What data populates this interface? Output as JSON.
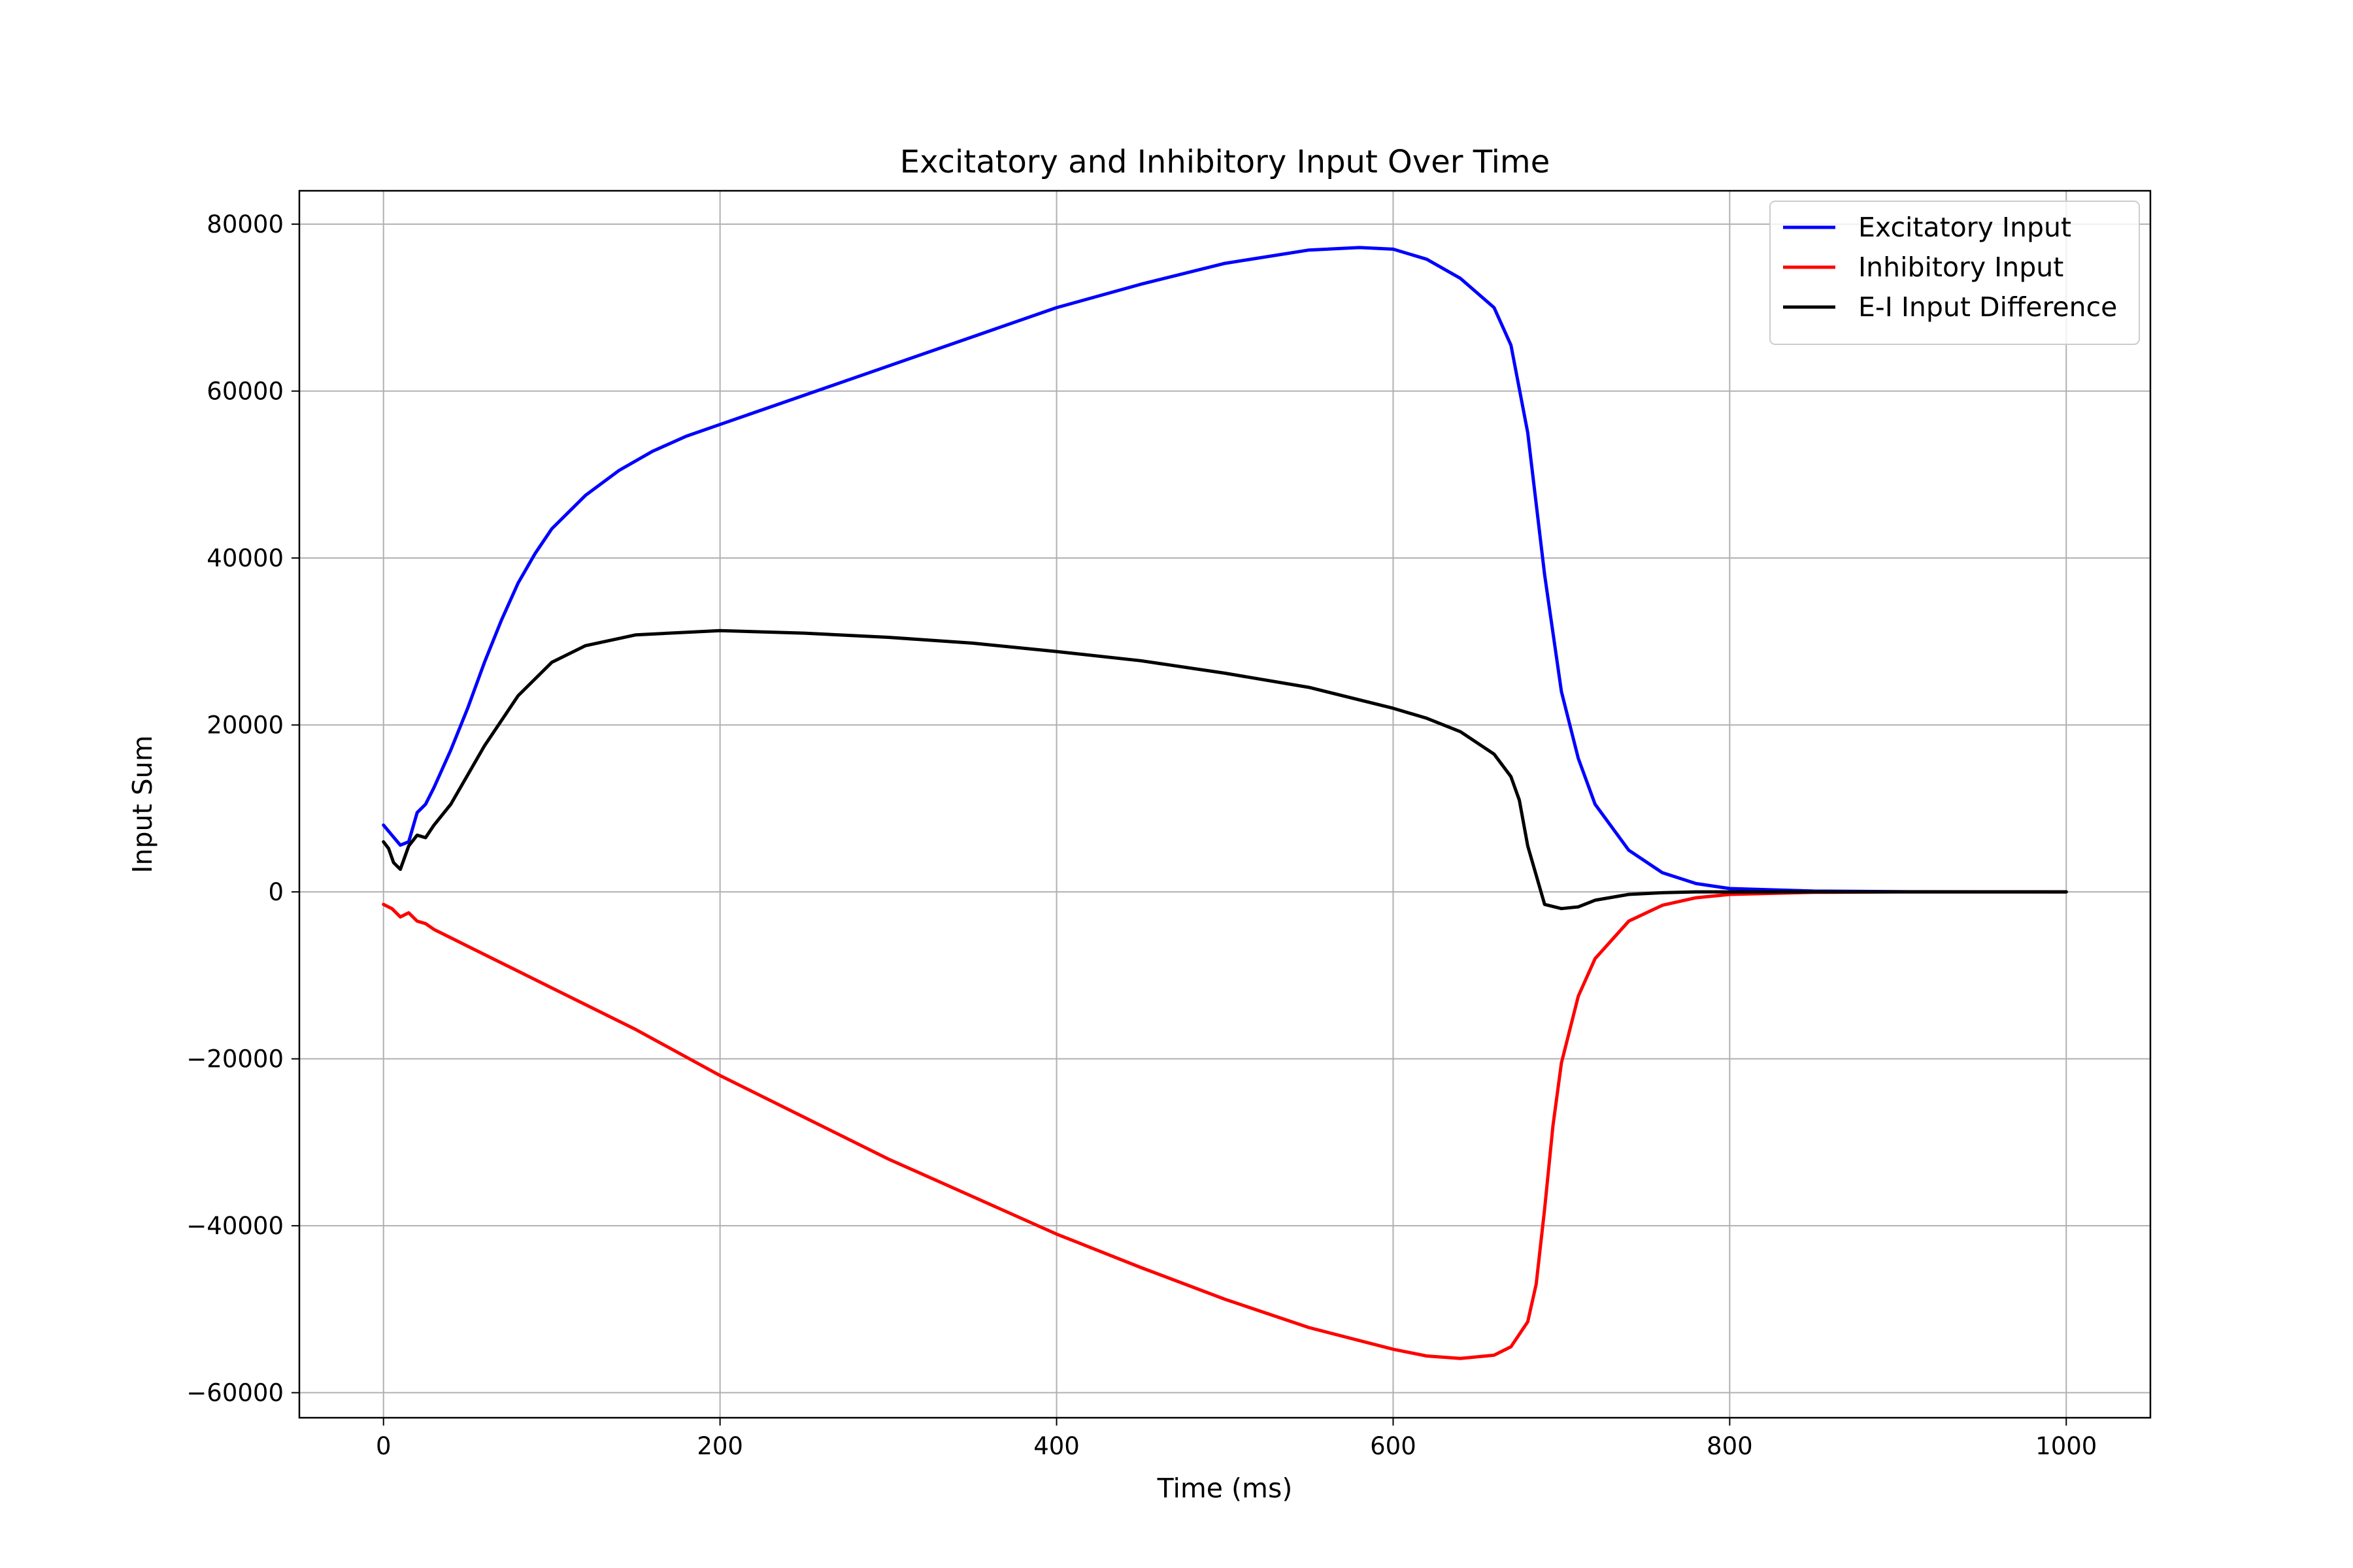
{
  "chart_data": {
    "type": "line",
    "title": "Excitatory and Inhibitory Input Over Time",
    "xlabel": "Time (ms)",
    "ylabel": "Input Sum",
    "xlim": [
      -50,
      1050
    ],
    "ylim": [
      -63000,
      84000
    ],
    "xticks": [
      0,
      200,
      400,
      600,
      800,
      1000
    ],
    "yticks": [
      -60000,
      -40000,
      -20000,
      0,
      20000,
      40000,
      60000,
      80000
    ],
    "xtick_labels": [
      "0",
      "200",
      "400",
      "600",
      "800",
      "1000"
    ],
    "ytick_labels": [
      "−60000",
      "−40000",
      "−20000",
      "0",
      "20000",
      "40000",
      "60000",
      "80000"
    ],
    "grid": true,
    "legend_position": "top-right",
    "series": [
      {
        "name": "Excitatory Input",
        "color": "#0000ff",
        "x": [
          0,
          5,
          10,
          15,
          20,
          25,
          30,
          40,
          50,
          60,
          70,
          80,
          90,
          100,
          120,
          140,
          160,
          180,
          200,
          250,
          300,
          350,
          400,
          450,
          500,
          550,
          580,
          600,
          620,
          640,
          660,
          670,
          680,
          690,
          700,
          710,
          720,
          740,
          760,
          780,
          800,
          850,
          900,
          950,
          1000
        ],
        "y": [
          8000,
          6800,
          5600,
          6000,
          9500,
          10500,
          12500,
          17000,
          22000,
          27500,
          32500,
          37000,
          40500,
          43500,
          47500,
          50500,
          52800,
          54600,
          56000,
          59500,
          63000,
          66500,
          70000,
          72800,
          75300,
          76900,
          77200,
          77000,
          75800,
          73500,
          70000,
          65500,
          55000,
          38000,
          24000,
          16000,
          10500,
          5000,
          2300,
          1000,
          400,
          100,
          30,
          10,
          0
        ]
      },
      {
        "name": "Inhibitory Input",
        "color": "#ff0000",
        "x": [
          0,
          5,
          10,
          15,
          20,
          25,
          30,
          40,
          50,
          60,
          80,
          100,
          150,
          200,
          250,
          300,
          350,
          400,
          450,
          500,
          550,
          600,
          620,
          640,
          660,
          670,
          680,
          685,
          690,
          695,
          700,
          710,
          720,
          740,
          760,
          780,
          800,
          850,
          900,
          950,
          1000
        ],
        "y": [
          -1500,
          -2000,
          -3000,
          -2500,
          -3500,
          -3800,
          -4500,
          -5500,
          -6500,
          -7500,
          -9500,
          -11500,
          -16500,
          -22000,
          -27000,
          -32000,
          -36500,
          -41000,
          -45000,
          -48800,
          -52200,
          -54800,
          -55600,
          -55900,
          -55500,
          -54500,
          -51500,
          -47000,
          -38000,
          -28000,
          -20500,
          -12500,
          -8000,
          -3500,
          -1600,
          -700,
          -300,
          -50,
          0,
          0,
          0
        ]
      },
      {
        "name": "E-I Input Difference",
        "color": "#000000",
        "x": [
          0,
          3,
          6,
          10,
          15,
          20,
          25,
          30,
          40,
          50,
          60,
          80,
          100,
          120,
          150,
          200,
          250,
          300,
          350,
          400,
          450,
          500,
          550,
          600,
          620,
          640,
          660,
          670,
          675,
          680,
          685,
          690,
          700,
          710,
          720,
          740,
          760,
          780,
          800,
          850,
          900,
          1000
        ],
        "y": [
          6000,
          5200,
          3500,
          2700,
          5500,
          6800,
          6500,
          8000,
          10500,
          14000,
          17500,
          23500,
          27500,
          29500,
          30800,
          31300,
          31000,
          30500,
          29800,
          28800,
          27700,
          26200,
          24500,
          22000,
          20800,
          19200,
          16500,
          13800,
          11000,
          5500,
          2000,
          -1500,
          -2000,
          -1800,
          -1000,
          -300,
          -100,
          0,
          0,
          0,
          0,
          0
        ]
      }
    ]
  }
}
